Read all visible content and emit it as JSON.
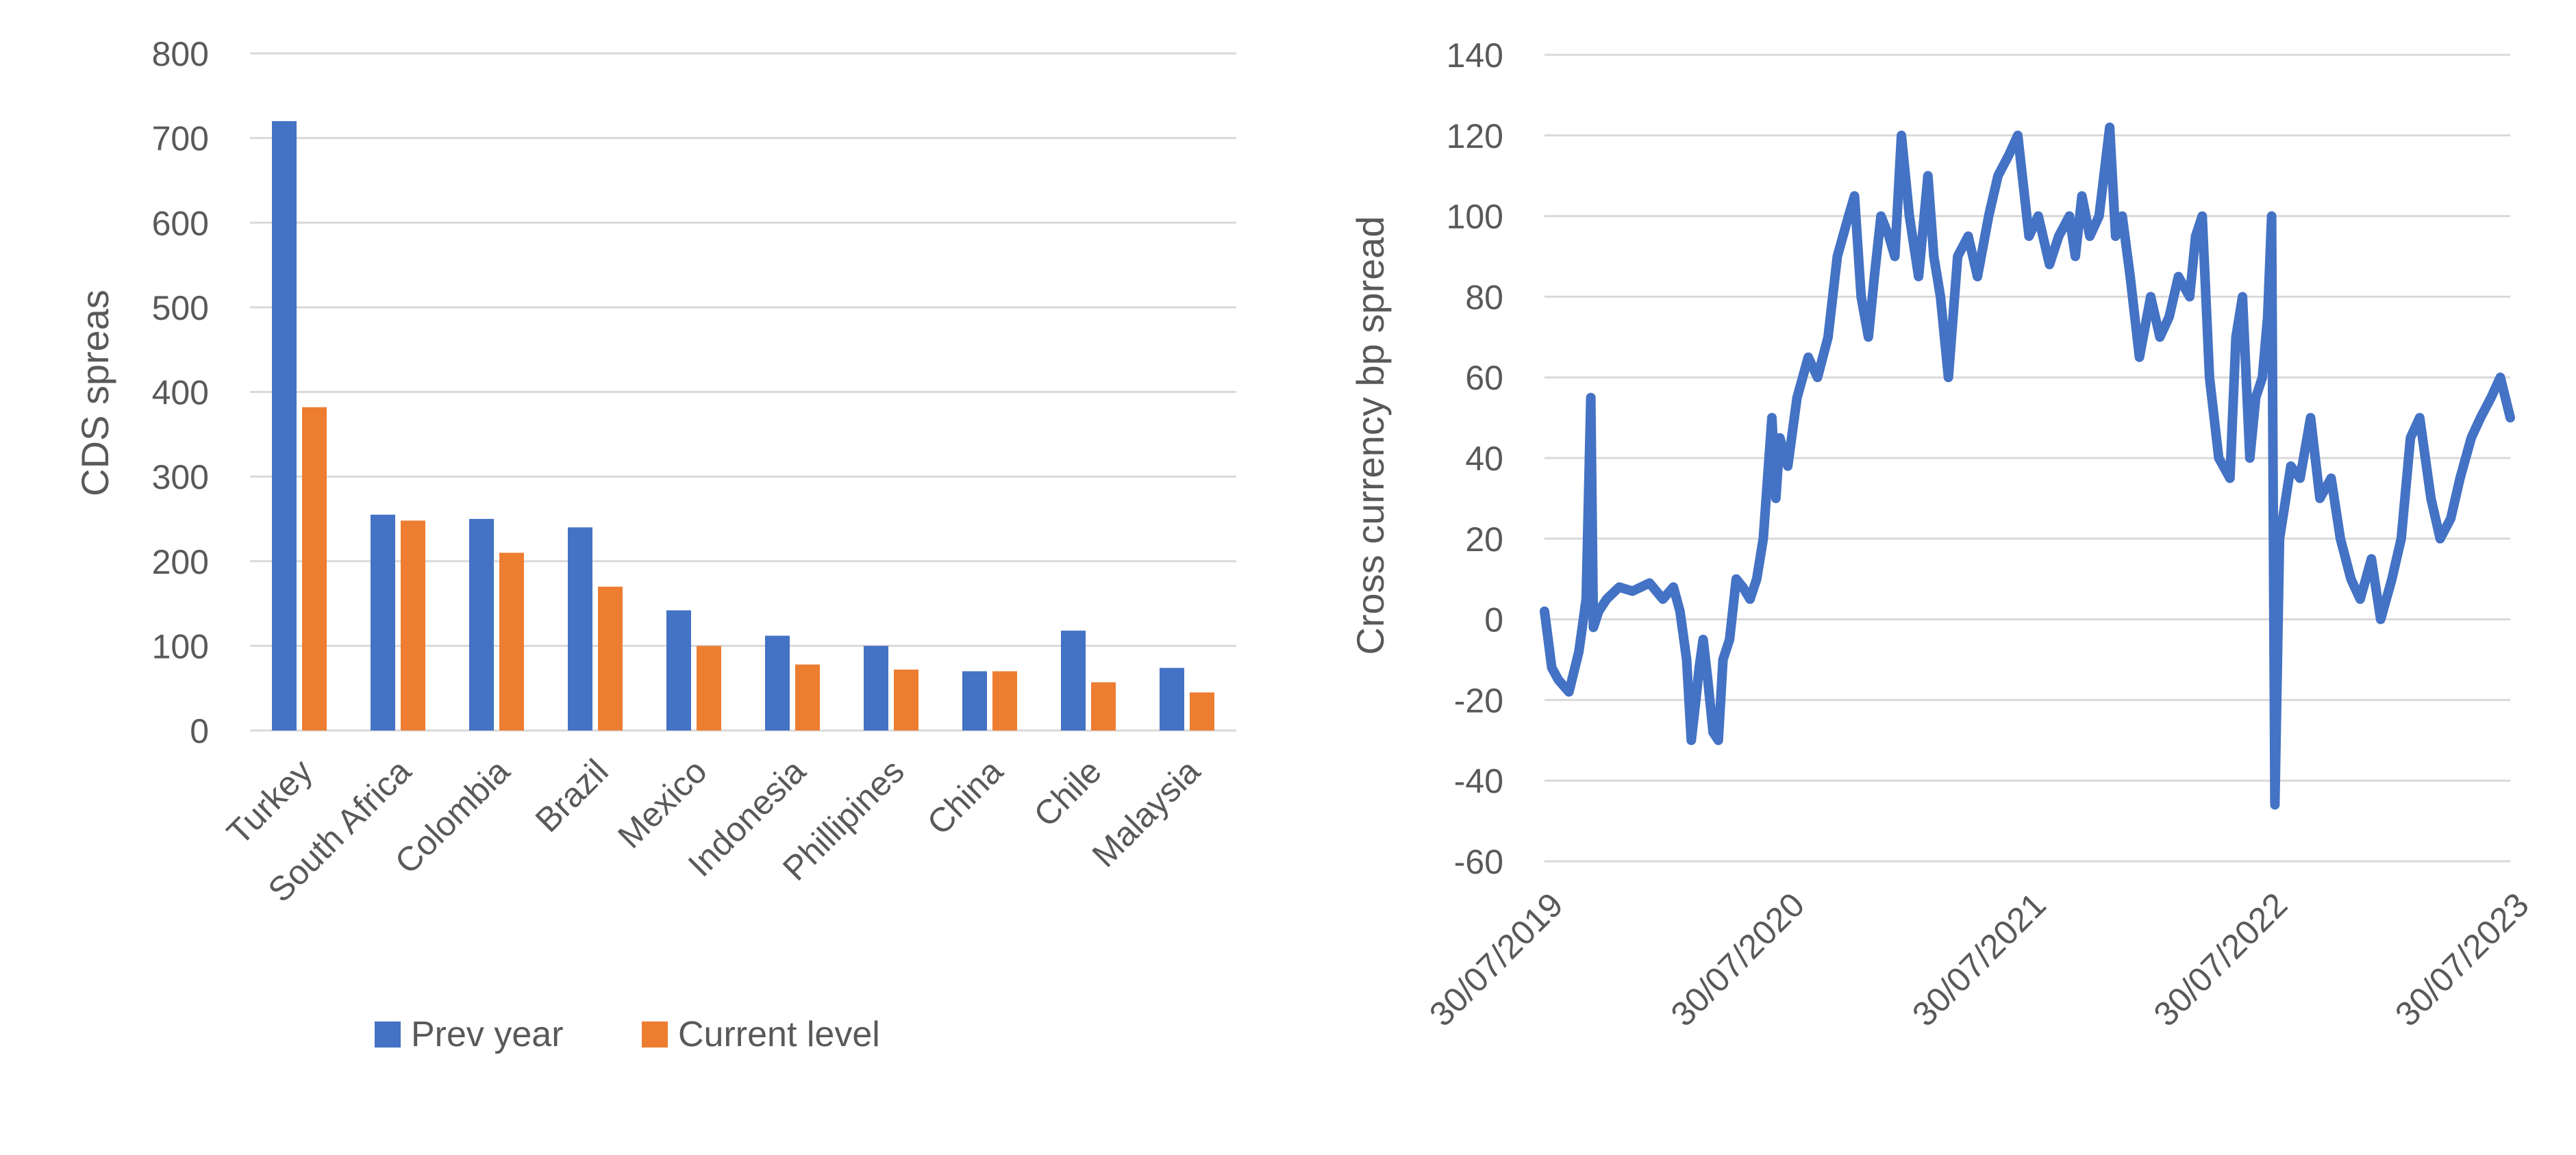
{
  "chart_data": [
    {
      "type": "bar",
      "ylabel": "CDS spreas",
      "ylim": [
        0,
        800
      ],
      "yticks": [
        0,
        100,
        200,
        300,
        400,
        500,
        600,
        700,
        800
      ],
      "grid": true,
      "legend_position": "bottom",
      "categories": [
        "Turkey",
        "South Africa",
        "Colombia",
        "Brazil",
        "Mexico",
        "Indonesia",
        "Phillipines",
        "China",
        "Chile",
        "Malaysia"
      ],
      "series": [
        {
          "name": "Prev year",
          "color": "#4472C4",
          "values": [
            720,
            255,
            250,
            240,
            142,
            112,
            100,
            70,
            118,
            74
          ]
        },
        {
          "name": "Current level",
          "color": "#ED7D31",
          "values": [
            382,
            248,
            210,
            170,
            100,
            78,
            72,
            70,
            57,
            45
          ]
        }
      ]
    },
    {
      "type": "line",
      "ylabel": "Cross currency bp spread",
      "ylim": [
        -60,
        140
      ],
      "yticks": [
        -60,
        -40,
        -20,
        0,
        20,
        40,
        60,
        80,
        100,
        120,
        140
      ],
      "grid": true,
      "xlim": [
        "2019-07-30",
        "2023-07-30"
      ],
      "xtick_labels": [
        "30/07/2019",
        "30/07/2020",
        "30/07/2021",
        "30/07/2022",
        "30/07/2023"
      ],
      "series": [
        {
          "color": "#4472C4",
          "x": [
            "2019-07-30",
            "2019-08-10",
            "2019-08-20",
            "2019-09-05",
            "2019-09-20",
            "2019-10-01",
            "2019-10-08",
            "2019-10-12",
            "2019-10-20",
            "2019-11-01",
            "2019-11-20",
            "2019-12-10",
            "2020-01-05",
            "2020-01-25",
            "2020-02-10",
            "2020-02-20",
            "2020-03-01",
            "2020-03-08",
            "2020-03-15",
            "2020-03-20",
            "2020-03-26",
            "2020-04-02",
            "2020-04-10",
            "2020-04-18",
            "2020-04-25",
            "2020-05-05",
            "2020-05-15",
            "2020-05-25",
            "2020-06-05",
            "2020-06-15",
            "2020-06-25",
            "2020-07-08",
            "2020-07-14",
            "2020-07-20",
            "2020-08-01",
            "2020-08-15",
            "2020-09-01",
            "2020-09-15",
            "2020-10-01",
            "2020-10-15",
            "2020-11-01",
            "2020-11-10",
            "2020-11-20",
            "2020-12-01",
            "2020-12-10",
            "2020-12-20",
            "2021-01-01",
            "2021-01-10",
            "2021-01-20",
            "2021-02-01",
            "2021-02-15",
            "2021-03-01",
            "2021-03-10",
            "2021-03-20",
            "2021-04-01",
            "2021-04-15",
            "2021-05-01",
            "2021-05-15",
            "2021-06-01",
            "2021-06-15",
            "2021-07-01",
            "2021-07-15",
            "2021-08-01",
            "2021-08-15",
            "2021-09-01",
            "2021-09-15",
            "2021-10-01",
            "2021-10-10",
            "2021-10-20",
            "2021-11-01",
            "2021-11-15",
            "2021-12-01",
            "2021-12-10",
            "2021-12-20",
            "2022-01-01",
            "2022-01-15",
            "2022-02-01",
            "2022-02-15",
            "2022-03-01",
            "2022-03-15",
            "2022-04-01",
            "2022-04-10",
            "2022-04-20",
            "2022-05-01",
            "2022-05-15",
            "2022-06-01",
            "2022-06-10",
            "2022-06-20",
            "2022-07-01",
            "2022-07-10",
            "2022-07-20",
            "2022-07-28",
            "2022-08-03",
            "2022-08-08",
            "2022-08-15",
            "2022-09-01",
            "2022-09-15",
            "2022-10-01",
            "2022-10-15",
            "2022-11-01",
            "2022-11-15",
            "2022-12-01",
            "2022-12-15",
            "2023-01-01",
            "2023-01-15",
            "2023-02-01",
            "2023-02-15",
            "2023-03-01",
            "2023-03-15",
            "2023-04-01",
            "2023-04-15",
            "2023-05-01",
            "2023-05-15",
            "2023-06-01",
            "2023-06-15",
            "2023-07-01",
            "2023-07-15",
            "2023-07-30"
          ],
          "values": [
            2,
            -12,
            -15,
            -18,
            -8,
            5,
            55,
            -2,
            2,
            5,
            8,
            7,
            9,
            5,
            8,
            2,
            -10,
            -30,
            -20,
            -12,
            -5,
            -15,
            -28,
            -30,
            -10,
            -5,
            10,
            8,
            5,
            10,
            20,
            50,
            30,
            45,
            38,
            55,
            65,
            60,
            70,
            90,
            100,
            105,
            80,
            70,
            85,
            100,
            95,
            90,
            120,
            100,
            85,
            110,
            90,
            80,
            60,
            90,
            95,
            85,
            100,
            110,
            115,
            120,
            95,
            100,
            88,
            95,
            100,
            90,
            105,
            95,
            100,
            122,
            95,
            100,
            85,
            65,
            80,
            70,
            75,
            85,
            80,
            95,
            100,
            60,
            40,
            35,
            70,
            80,
            40,
            55,
            60,
            75,
            100,
            -46,
            20,
            38,
            35,
            50,
            30,
            35,
            20,
            10,
            5,
            15,
            0,
            10,
            20,
            45,
            50,
            30,
            20,
            25,
            35,
            45,
            50,
            55,
            60,
            50
          ]
        }
      ]
    }
  ]
}
